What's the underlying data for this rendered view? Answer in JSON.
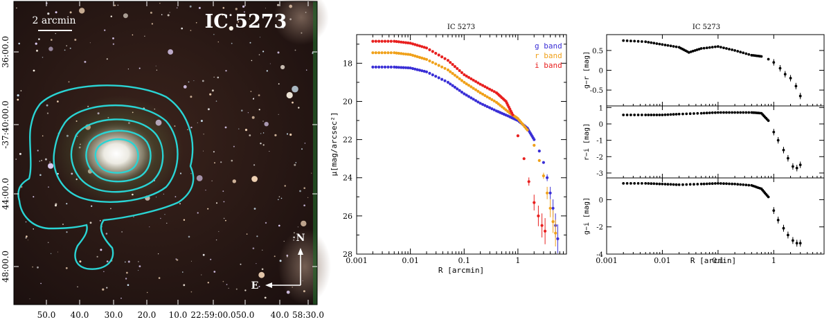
{
  "image_panel": {
    "title": "IC 5273",
    "scalebar_label": "2 arcmin",
    "compass": {
      "north": "N",
      "east": "E"
    },
    "ra_ticks": [
      "50.0",
      "40.0",
      "30.0",
      "20.0",
      "10.0",
      "22:59:00.0",
      "50.0",
      "40.0",
      "58:30.0"
    ],
    "dec_ticks": [
      "36:00.0",
      "-37:40:00.0",
      "44:00.0",
      "48:00.0"
    ],
    "contour_color": "#2ad4d4"
  },
  "chart_data": [
    {
      "type": "scatter",
      "title": "IC 5273",
      "xlabel": "R [arcmin]",
      "ylabel": "μ[mag/arcsec²]",
      "xscale": "log",
      "xlim": [
        0.001,
        8
      ],
      "ylim": [
        28,
        16.5
      ],
      "xticks": [
        "0.001",
        "0.01",
        "0.1",
        "1"
      ],
      "xtick_values": [
        0.001,
        0.01,
        0.1,
        1
      ],
      "yticks": [
        "18",
        "20",
        "22",
        "24",
        "26",
        "28"
      ],
      "ytick_values": [
        18,
        20,
        22,
        24,
        26,
        28
      ],
      "legend_position": "top-right",
      "series": [
        {
          "name": "g band",
          "color": "#3a2fd6",
          "x": [
            0.002,
            0.005,
            0.01,
            0.02,
            0.05,
            0.1,
            0.2,
            0.4,
            0.7,
            1.0,
            1.5,
            2.0,
            2.5,
            3.0,
            3.5,
            4.0,
            4.5,
            5.0,
            5.5
          ],
          "y": [
            18.2,
            18.2,
            18.25,
            18.45,
            19.0,
            19.6,
            20.1,
            20.5,
            20.8,
            21.0,
            21.4,
            22.0,
            22.6,
            23.2,
            24.0,
            24.8,
            25.6,
            26.5,
            27.2
          ]
        },
        {
          "name": "r band",
          "color": "#f0a11a",
          "x": [
            0.002,
            0.005,
            0.01,
            0.02,
            0.05,
            0.1,
            0.2,
            0.4,
            0.7,
            1.0,
            1.5,
            2.0,
            2.5,
            3.0,
            3.5,
            4.0,
            4.5,
            5.0
          ],
          "y": [
            17.45,
            17.45,
            17.55,
            17.8,
            18.35,
            19.0,
            19.55,
            20.05,
            20.6,
            20.9,
            21.5,
            22.3,
            23.1,
            23.9,
            24.8,
            25.6,
            26.3,
            26.9
          ]
        },
        {
          "name": "i band",
          "color": "#e8201f",
          "x": [
            0.002,
            0.005,
            0.01,
            0.02,
            0.05,
            0.1,
            0.2,
            0.4,
            0.6,
            0.8,
            1.0,
            1.3,
            1.6,
            2.0,
            2.4,
            2.8,
            3.2
          ],
          "y": [
            16.85,
            16.85,
            16.95,
            17.2,
            17.85,
            18.6,
            19.1,
            19.55,
            20.0,
            20.7,
            21.8,
            23.0,
            24.2,
            25.3,
            26.0,
            26.5,
            26.8
          ]
        }
      ]
    },
    {
      "type": "scatter",
      "title": "IC 5273",
      "xlabel": "R [arcmin]",
      "xscale": "log",
      "xlim": [
        0.001,
        8
      ],
      "xticks": [
        "0.001",
        "0.01",
        "0.1",
        "1"
      ],
      "xtick_values": [
        0.001,
        0.01,
        0.1,
        1
      ],
      "subplots": [
        {
          "ylabel": "g−r [mag]",
          "ylim": [
            -0.9,
            0.9
          ],
          "yticks": [
            "0.5",
            "0",
            "-0.5"
          ],
          "ytick_values": [
            0.5,
            0,
            -0.5
          ],
          "x": [
            0.002,
            0.005,
            0.01,
            0.02,
            0.03,
            0.05,
            0.1,
            0.2,
            0.4,
            0.6,
            0.8,
            1.0,
            1.3,
            1.6,
            2.0,
            2.5,
            3.0
          ],
          "y": [
            0.75,
            0.72,
            0.65,
            0.58,
            0.45,
            0.55,
            0.6,
            0.5,
            0.38,
            0.35,
            0.28,
            0.2,
            0.05,
            -0.1,
            -0.2,
            -0.4,
            -0.65
          ]
        },
        {
          "ylabel": "r−i [mag]",
          "ylim": [
            -3.3,
            1.1
          ],
          "yticks": [
            "1",
            "0",
            "-1",
            "-2",
            "-3"
          ],
          "ytick_values": [
            1,
            0,
            -1,
            -2,
            -3
          ],
          "x": [
            0.002,
            0.005,
            0.01,
            0.02,
            0.05,
            0.1,
            0.2,
            0.4,
            0.6,
            0.8,
            1.0,
            1.2,
            1.5,
            1.8,
            2.2,
            2.6,
            3.0
          ],
          "y": [
            0.55,
            0.55,
            0.55,
            0.6,
            0.65,
            0.7,
            0.7,
            0.7,
            0.65,
            0.2,
            -0.5,
            -1.0,
            -1.6,
            -2.1,
            -2.6,
            -2.7,
            -2.5
          ]
        },
        {
          "ylabel": "g−i [mag]",
          "ylim": [
            -4,
            1.6
          ],
          "yticks": [
            "0",
            "-2",
            "-4"
          ],
          "ytick_values": [
            0,
            -2,
            -4
          ],
          "x": [
            0.002,
            0.005,
            0.01,
            0.02,
            0.05,
            0.1,
            0.2,
            0.4,
            0.6,
            0.8,
            1.0,
            1.2,
            1.5,
            1.8,
            2.2,
            2.6,
            3.0
          ],
          "y": [
            1.2,
            1.2,
            1.15,
            1.1,
            1.15,
            1.2,
            1.15,
            1.05,
            0.8,
            0.2,
            -0.8,
            -1.5,
            -2.1,
            -2.6,
            -3.0,
            -3.2,
            -3.2
          ]
        }
      ]
    }
  ]
}
